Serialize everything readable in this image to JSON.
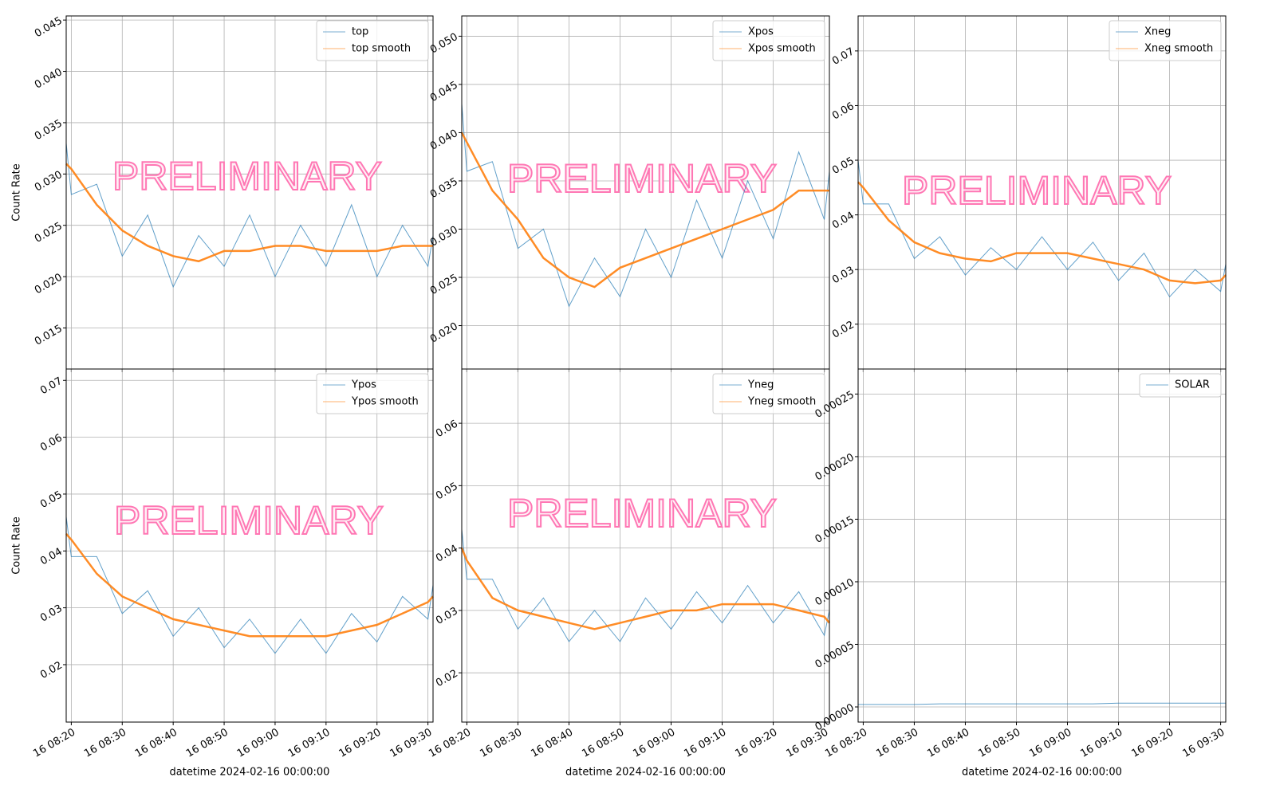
{
  "chart_data": [
    {
      "type": "line",
      "ylabel": "Count Rate",
      "annotation": "PRELIMINARY",
      "legend": "upper right",
      "grid": true,
      "x": [
        "16 08:19",
        "16 08:20",
        "16 08:25",
        "16 08:30",
        "16 08:35",
        "16 08:40",
        "16 08:45",
        "16 08:50",
        "16 08:55",
        "16 09:00",
        "16 09:05",
        "16 09:10",
        "16 09:15",
        "16 09:20",
        "16 09:25",
        "16 09:30",
        "16 09:31"
      ],
      "xlim": [
        "16 08:19",
        "16 09:31"
      ],
      "xticks": [
        "16 08:20",
        "16 08:30",
        "16 08:40",
        "16 08:50",
        "16 09:00",
        "16 09:10",
        "16 09:20",
        "16 09:30"
      ],
      "ylim": [
        0.011,
        0.0454
      ],
      "yticks": [
        0.015,
        {
          "value": 0.02,
          "label": "0.020"
        },
        0.025,
        {
          "value": 0.03,
          "label": "0.030"
        },
        0.035,
        {
          "value": 0.04,
          "label": "0.040"
        },
        0.045
      ],
      "series": [
        {
          "name": "top",
          "color": "#1f77b4",
          "values": [
            0.033,
            0.028,
            0.029,
            0.022,
            0.026,
            0.019,
            0.024,
            0.021,
            0.026,
            0.02,
            0.025,
            0.021,
            0.027,
            0.02,
            0.025,
            0.021,
            0.024
          ]
        },
        {
          "name": "top smooth",
          "color": "#ff7f0e",
          "values": [
            0.031,
            0.0305,
            0.027,
            0.0245,
            0.023,
            0.022,
            0.0215,
            0.0225,
            0.0225,
            0.023,
            0.023,
            0.0225,
            0.0225,
            0.0225,
            0.023,
            0.023,
            0.023
          ]
        }
      ]
    },
    {
      "type": "line",
      "annotation": "PRELIMINARY",
      "legend": "upper right",
      "grid": true,
      "x": [
        "16 08:19",
        "16 08:20",
        "16 08:25",
        "16 08:30",
        "16 08:35",
        "16 08:40",
        "16 08:45",
        "16 08:50",
        "16 08:55",
        "16 09:00",
        "16 09:05",
        "16 09:10",
        "16 09:15",
        "16 09:20",
        "16 09:25",
        "16 09:30",
        "16 09:31"
      ],
      "xlim": [
        "16 08:19",
        "16 09:31"
      ],
      "xticks": [
        "16 08:20",
        "16 08:30",
        "16 08:40",
        "16 08:50",
        "16 09:00",
        "16 09:10",
        "16 09:20",
        "16 09:30"
      ],
      "ylim": [
        0.0155,
        0.0521
      ],
      "yticks": [
        {
          "value": 0.02,
          "label": "0.020"
        },
        0.025,
        {
          "value": 0.03,
          "label": "0.030"
        },
        0.035,
        {
          "value": 0.04,
          "label": "0.040"
        },
        0.045,
        {
          "value": 0.05,
          "label": "0.050"
        }
      ],
      "series": [
        {
          "name": "Xpos",
          "color": "#1f77b4",
          "values": [
            0.043,
            0.036,
            0.037,
            0.028,
            0.03,
            0.022,
            0.027,
            0.023,
            0.03,
            0.025,
            0.033,
            0.027,
            0.035,
            0.029,
            0.038,
            0.031,
            0.036
          ]
        },
        {
          "name": "Xpos smooth",
          "color": "#ff7f0e",
          "values": [
            0.04,
            0.039,
            0.034,
            0.031,
            0.027,
            0.025,
            0.024,
            0.026,
            0.027,
            0.028,
            0.029,
            0.03,
            0.031,
            0.032,
            0.034,
            0.034,
            0.034
          ]
        }
      ]
    },
    {
      "type": "line",
      "annotation": "PRELIMINARY",
      "legend": "upper right",
      "grid": true,
      "x": [
        "16 08:19",
        "16 08:20",
        "16 08:25",
        "16 08:30",
        "16 08:35",
        "16 08:40",
        "16 08:45",
        "16 08:50",
        "16 08:55",
        "16 09:00",
        "16 09:05",
        "16 09:10",
        "16 09:15",
        "16 09:20",
        "16 09:25",
        "16 09:30",
        "16 09:31"
      ],
      "xlim": [
        "16 08:19",
        "16 09:31"
      ],
      "xticks": [
        "16 08:20",
        "16 08:30",
        "16 08:40",
        "16 08:50",
        "16 09:00",
        "16 09:10",
        "16 09:20",
        "16 09:30"
      ],
      "ylim": [
        0.0118,
        0.0764
      ],
      "yticks": [
        0.02,
        0.03,
        0.04,
        0.05,
        0.06,
        0.07
      ],
      "series": [
        {
          "name": "Xneg",
          "color": "#1f77b4",
          "values": [
            0.05,
            0.042,
            0.042,
            0.032,
            0.036,
            0.029,
            0.034,
            0.03,
            0.036,
            0.03,
            0.035,
            0.028,
            0.033,
            0.025,
            0.03,
            0.026,
            0.031
          ]
        },
        {
          "name": "Xneg smooth",
          "color": "#ff7f0e",
          "values": [
            0.046,
            0.045,
            0.039,
            0.035,
            0.033,
            0.032,
            0.0315,
            0.033,
            0.033,
            0.033,
            0.032,
            0.031,
            0.03,
            0.028,
            0.0275,
            0.028,
            0.029
          ]
        }
      ]
    },
    {
      "type": "line",
      "ylabel": "Count Rate",
      "xlabel": "datetime 2024-02-16 00:00:00",
      "annotation": "PRELIMINARY",
      "legend": "upper right",
      "grid": true,
      "x": [
        "16 08:19",
        "16 08:20",
        "16 08:25",
        "16 08:30",
        "16 08:35",
        "16 08:40",
        "16 08:45",
        "16 08:50",
        "16 08:55",
        "16 09:00",
        "16 09:05",
        "16 09:10",
        "16 09:15",
        "16 09:20",
        "16 09:25",
        "16 09:30",
        "16 09:31"
      ],
      "xlim": [
        "16 08:19",
        "16 09:31"
      ],
      "xticks": [
        "16 08:20",
        "16 08:30",
        "16 08:40",
        "16 08:50",
        "16 09:00",
        "16 09:10",
        "16 09:20",
        "16 09:30"
      ],
      "ylim": [
        0.0099,
        0.072
      ],
      "yticks": [
        0.02,
        0.03,
        0.04,
        0.05,
        0.06,
        0.07
      ],
      "series": [
        {
          "name": "Ypos",
          "color": "#1f77b4",
          "values": [
            0.046,
            0.039,
            0.039,
            0.029,
            0.033,
            0.025,
            0.03,
            0.023,
            0.028,
            0.022,
            0.028,
            0.022,
            0.029,
            0.024,
            0.032,
            0.028,
            0.034
          ]
        },
        {
          "name": "Ypos smooth",
          "color": "#ff7f0e",
          "values": [
            0.043,
            0.042,
            0.036,
            0.032,
            0.03,
            0.028,
            0.027,
            0.026,
            0.025,
            0.025,
            0.025,
            0.025,
            0.026,
            0.027,
            0.029,
            0.031,
            0.032
          ]
        }
      ]
    },
    {
      "type": "line",
      "xlabel": "datetime 2024-02-16 00:00:00",
      "annotation": "PRELIMINARY",
      "legend": "upper right",
      "grid": true,
      "x": [
        "16 08:19",
        "16 08:20",
        "16 08:25",
        "16 08:30",
        "16 08:35",
        "16 08:40",
        "16 08:45",
        "16 08:50",
        "16 08:55",
        "16 09:00",
        "16 09:05",
        "16 09:10",
        "16 09:15",
        "16 09:20",
        "16 09:25",
        "16 09:30",
        "16 09:31"
      ],
      "xlim": [
        "16 08:19",
        "16 09:31"
      ],
      "xticks": [
        "16 08:20",
        "16 08:30",
        "16 08:40",
        "16 08:50",
        "16 09:00",
        "16 09:10",
        "16 09:20",
        "16 09:30"
      ],
      "ylim": [
        0.0121,
        0.0687
      ],
      "yticks": [
        0.02,
        0.03,
        0.04,
        0.05,
        0.06
      ],
      "series": [
        {
          "name": "Yneg",
          "color": "#1f77b4",
          "values": [
            0.043,
            0.035,
            0.035,
            0.027,
            0.032,
            0.025,
            0.03,
            0.025,
            0.032,
            0.027,
            0.033,
            0.028,
            0.034,
            0.028,
            0.033,
            0.026,
            0.03
          ]
        },
        {
          "name": "Yneg smooth",
          "color": "#ff7f0e",
          "values": [
            0.04,
            0.038,
            0.032,
            0.03,
            0.029,
            0.028,
            0.027,
            0.028,
            0.029,
            0.03,
            0.03,
            0.031,
            0.031,
            0.031,
            0.03,
            0.029,
            0.028
          ]
        }
      ]
    },
    {
      "type": "line",
      "xlabel": "datetime 2024-02-16 00:00:00",
      "legend": "upper right",
      "grid": true,
      "x": [
        "16 08:19",
        "16 08:20",
        "16 08:25",
        "16 08:30",
        "16 08:35",
        "16 08:40",
        "16 08:45",
        "16 08:50",
        "16 08:55",
        "16 09:00",
        "16 09:05",
        "16 09:10",
        "16 09:15",
        "16 09:20",
        "16 09:25",
        "16 09:30",
        "16 09:31"
      ],
      "xlim": [
        "16 08:19",
        "16 09:31"
      ],
      "xticks": [
        "16 08:20",
        "16 08:30",
        "16 08:40",
        "16 08:50",
        "16 09:00",
        "16 09:10",
        "16 09:20",
        "16 09:30"
      ],
      "ylim": [
        -1.21e-05,
        0.00027
      ],
      "yticks": [
        {
          "value": 0,
          "label": "0.00000"
        },
        {
          "value": 5e-05,
          "label": "0.00005"
        },
        {
          "value": 0.0001,
          "label": "0.00010"
        },
        {
          "value": 0.00015,
          "label": "0.00015"
        },
        {
          "value": 0.0002,
          "label": "0.00020"
        },
        {
          "value": 0.00025,
          "label": "0.00025"
        }
      ],
      "series": [
        {
          "name": "SOLAR",
          "color": "#1f77b4",
          "values": [
            2e-06,
            2e-06,
            2e-06,
            2e-06,
            2.5e-06,
            2.5e-06,
            2.5e-06,
            2.5e-06,
            2.5e-06,
            2.5e-06,
            2.5e-06,
            3e-06,
            3e-06,
            3e-06,
            3e-06,
            3e-06,
            3e-06
          ]
        }
      ]
    }
  ]
}
